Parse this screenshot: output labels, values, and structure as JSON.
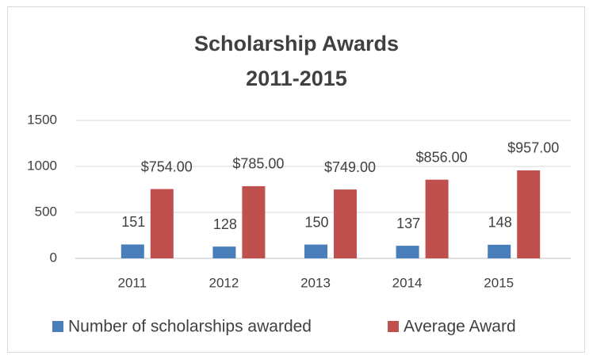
{
  "chart_data": {
    "type": "bar",
    "title": "Scholarship Awards",
    "subtitle": "2011-2015",
    "categories": [
      "2011",
      "2012",
      "2013",
      "2014",
      "2015"
    ],
    "series": [
      {
        "name": "Number of scholarships awarded",
        "color": "#4a7ebb",
        "values": [
          151,
          128,
          150,
          137,
          148
        ]
      },
      {
        "name": "Average Award",
        "color": "#c0504d",
        "values": [
          754,
          785,
          749,
          856,
          957
        ],
        "value_labels": [
          "$754.00",
          "$785.00",
          "$749.00",
          "$856.00",
          "$957.00"
        ]
      }
    ],
    "ylim": [
      0,
      1500
    ],
    "yticks": [
      0,
      500,
      1000,
      1500
    ],
    "grid": true,
    "legend": "bottom"
  }
}
